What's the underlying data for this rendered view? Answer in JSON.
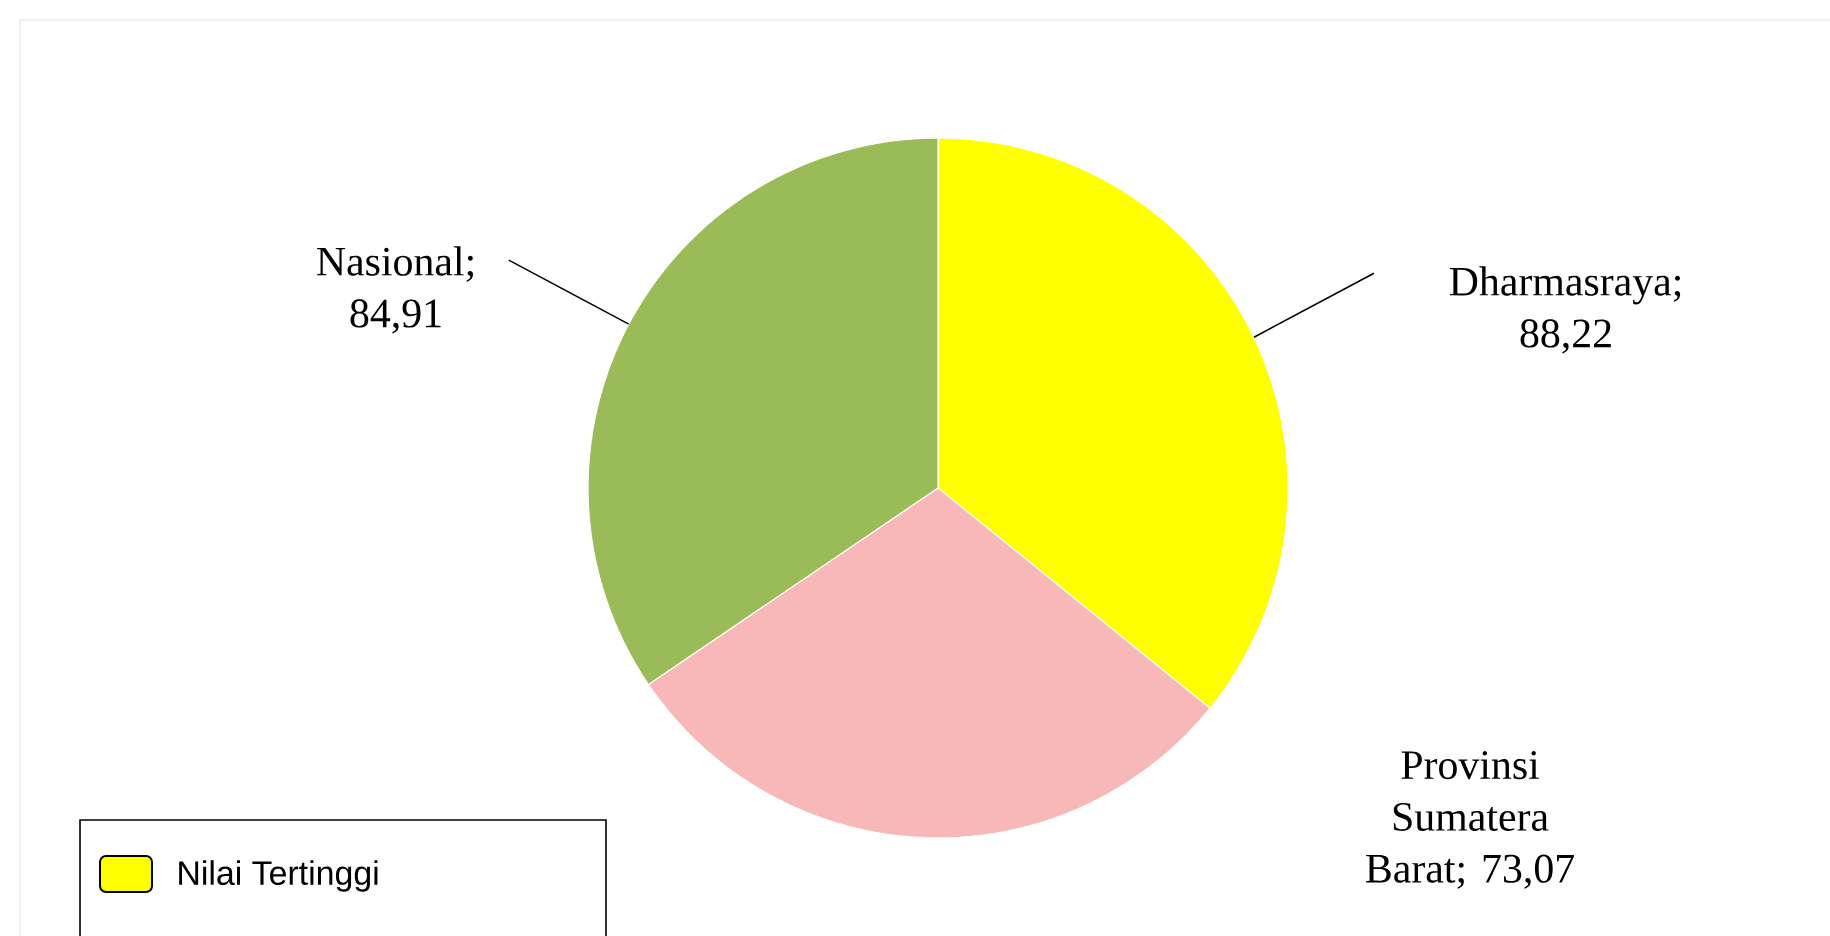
{
  "chart_data": {
    "type": "pie",
    "categories": [
      "Dharmasraya",
      "Provinsi Sumatera Barat",
      "Nasional"
    ],
    "values": [
      88.22,
      73.07,
      84.91
    ],
    "value_labels": [
      "; 88,22",
      "; 73,07",
      "; 84,91"
    ],
    "colors": [
      "#ffff00",
      "#f8b8b8",
      "#9bbb59"
    ],
    "annotations": [
      "Nilai Tertinggi"
    ]
  }
}
